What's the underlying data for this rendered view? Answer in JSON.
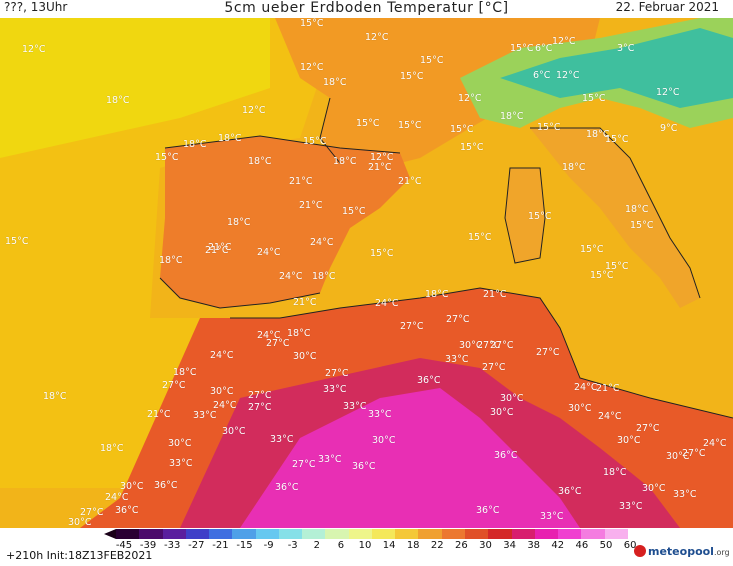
{
  "header": {
    "left": "???, 13Uhr",
    "title": "5cm ueber Erdboden Temperatur [°C]",
    "date": "22. Februar 2021"
  },
  "footer": {
    "init": "+210h  Init:18Z13FEB2021",
    "logo_name": "meteopool",
    "logo_tld": ".org"
  },
  "legend": {
    "ticks": [
      "-45",
      "-39",
      "-33",
      "-27",
      "-21",
      "-15",
      "-9",
      "-3",
      "2",
      "6",
      "10",
      "14",
      "18",
      "22",
      "26",
      "30",
      "34",
      "38",
      "42",
      "46",
      "50",
      "60"
    ],
    "colors": [
      "#2a0033",
      "#4b0a6b",
      "#5a1e9e",
      "#3f3fc8",
      "#3f6ee0",
      "#4fa0e8",
      "#66c8f0",
      "#86e0e8",
      "#b4f0d6",
      "#d8f5b0",
      "#eef58a",
      "#f4e85a",
      "#f4c838",
      "#f0a030",
      "#ec7830",
      "#e05028",
      "#d42828",
      "#d81e6e",
      "#e820b0",
      "#f040d0",
      "#f47ce0",
      "#f8b0ee"
    ]
  },
  "map_labels": [
    {
      "text": "15°C"
    },
    {
      "text": "12°C"
    },
    {
      "text": "12°C"
    },
    {
      "text": "15°C"
    },
    {
      "text": "12°C"
    },
    {
      "text": "6°C"
    },
    {
      "text": "12°C"
    },
    {
      "text": "6°C"
    },
    {
      "text": "3°C"
    },
    {
      "text": "15°C"
    },
    {
      "text": "15°C"
    },
    {
      "text": "12°C"
    },
    {
      "text": "18°C"
    },
    {
      "text": "12°C"
    },
    {
      "text": "12°C"
    },
    {
      "text": "15°C"
    },
    {
      "text": "12°C"
    },
    {
      "text": "9°C"
    },
    {
      "text": "18°C"
    },
    {
      "text": "15°C"
    },
    {
      "text": "18°C"
    },
    {
      "text": "15°C"
    },
    {
      "text": "18°C"
    },
    {
      "text": "15°C"
    },
    {
      "text": "15°C"
    },
    {
      "text": "18°C"
    },
    {
      "text": "15°C"
    },
    {
      "text": "15°C"
    },
    {
      "text": "18°C"
    },
    {
      "text": "18°C"
    },
    {
      "text": "12°C"
    },
    {
      "text": "21°C"
    },
    {
      "text": "18°C"
    },
    {
      "text": "21°C"
    },
    {
      "text": "21°C"
    },
    {
      "text": "18°C"
    },
    {
      "text": "15°C"
    },
    {
      "text": "15°C"
    },
    {
      "text": "18°C"
    },
    {
      "text": "15°C"
    },
    {
      "text": "15°C"
    },
    {
      "text": "21°C"
    },
    {
      "text": "21°C"
    },
    {
      "text": "24°C"
    },
    {
      "text": "15°C"
    },
    {
      "text": "15°C"
    },
    {
      "text": "18°C"
    },
    {
      "text": "15°C"
    },
    {
      "text": "24°C"
    },
    {
      "text": "15°C"
    },
    {
      "text": "15°C"
    },
    {
      "text": "15°C"
    },
    {
      "text": "18°C"
    },
    {
      "text": "15°C"
    },
    {
      "text": "21°C"
    },
    {
      "text": "18°C"
    },
    {
      "text": "21°C"
    },
    {
      "text": "24°C"
    },
    {
      "text": "18°C"
    },
    {
      "text": "21°C"
    },
    {
      "text": "27°C"
    },
    {
      "text": "27°C"
    },
    {
      "text": "24°C"
    },
    {
      "text": "24°C"
    },
    {
      "text": "18°C"
    },
    {
      "text": "27°C"
    },
    {
      "text": "30°C"
    },
    {
      "text": "30°C"
    },
    {
      "text": "27°C"
    },
    {
      "text": "24°C"
    },
    {
      "text": "33°C"
    },
    {
      "text": "27°C"
    },
    {
      "text": "27°C"
    },
    {
      "text": "18°C"
    },
    {
      "text": "27°C"
    },
    {
      "text": "36°C"
    },
    {
      "text": "27°C"
    },
    {
      "text": "30°C"
    },
    {
      "text": "18°C"
    },
    {
      "text": "30°C"
    },
    {
      "text": "27°C"
    },
    {
      "text": "33°C"
    },
    {
      "text": "24°C"
    },
    {
      "text": "21°C"
    },
    {
      "text": "21°C"
    },
    {
      "text": "33°C"
    },
    {
      "text": "24°C"
    },
    {
      "text": "27°C"
    },
    {
      "text": "33°C"
    },
    {
      "text": "30°C"
    },
    {
      "text": "30°C"
    },
    {
      "text": "27°C"
    },
    {
      "text": "24°C"
    },
    {
      "text": "30°C"
    },
    {
      "text": "33°C"
    },
    {
      "text": "30°C"
    },
    {
      "text": "27°C"
    },
    {
      "text": "30°C"
    },
    {
      "text": "18°C"
    },
    {
      "text": "30°C"
    },
    {
      "text": "33°C"
    },
    {
      "text": "24°C"
    },
    {
      "text": "33°C"
    },
    {
      "text": "30°C"
    },
    {
      "text": "33°C"
    },
    {
      "text": "36°C"
    },
    {
      "text": "27°C"
    },
    {
      "text": "27°C"
    },
    {
      "text": "36°C"
    },
    {
      "text": "30°C"
    },
    {
      "text": "18°C"
    },
    {
      "text": "36°C"
    },
    {
      "text": "36°C"
    },
    {
      "text": "36°C"
    },
    {
      "text": "30°C"
    },
    {
      "text": "33°C"
    },
    {
      "text": "24°C"
    },
    {
      "text": "33°C"
    },
    {
      "text": "36°C"
    },
    {
      "text": "27°C"
    },
    {
      "text": "36°C"
    },
    {
      "text": "33°C"
    },
    {
      "text": "30°C"
    }
  ]
}
